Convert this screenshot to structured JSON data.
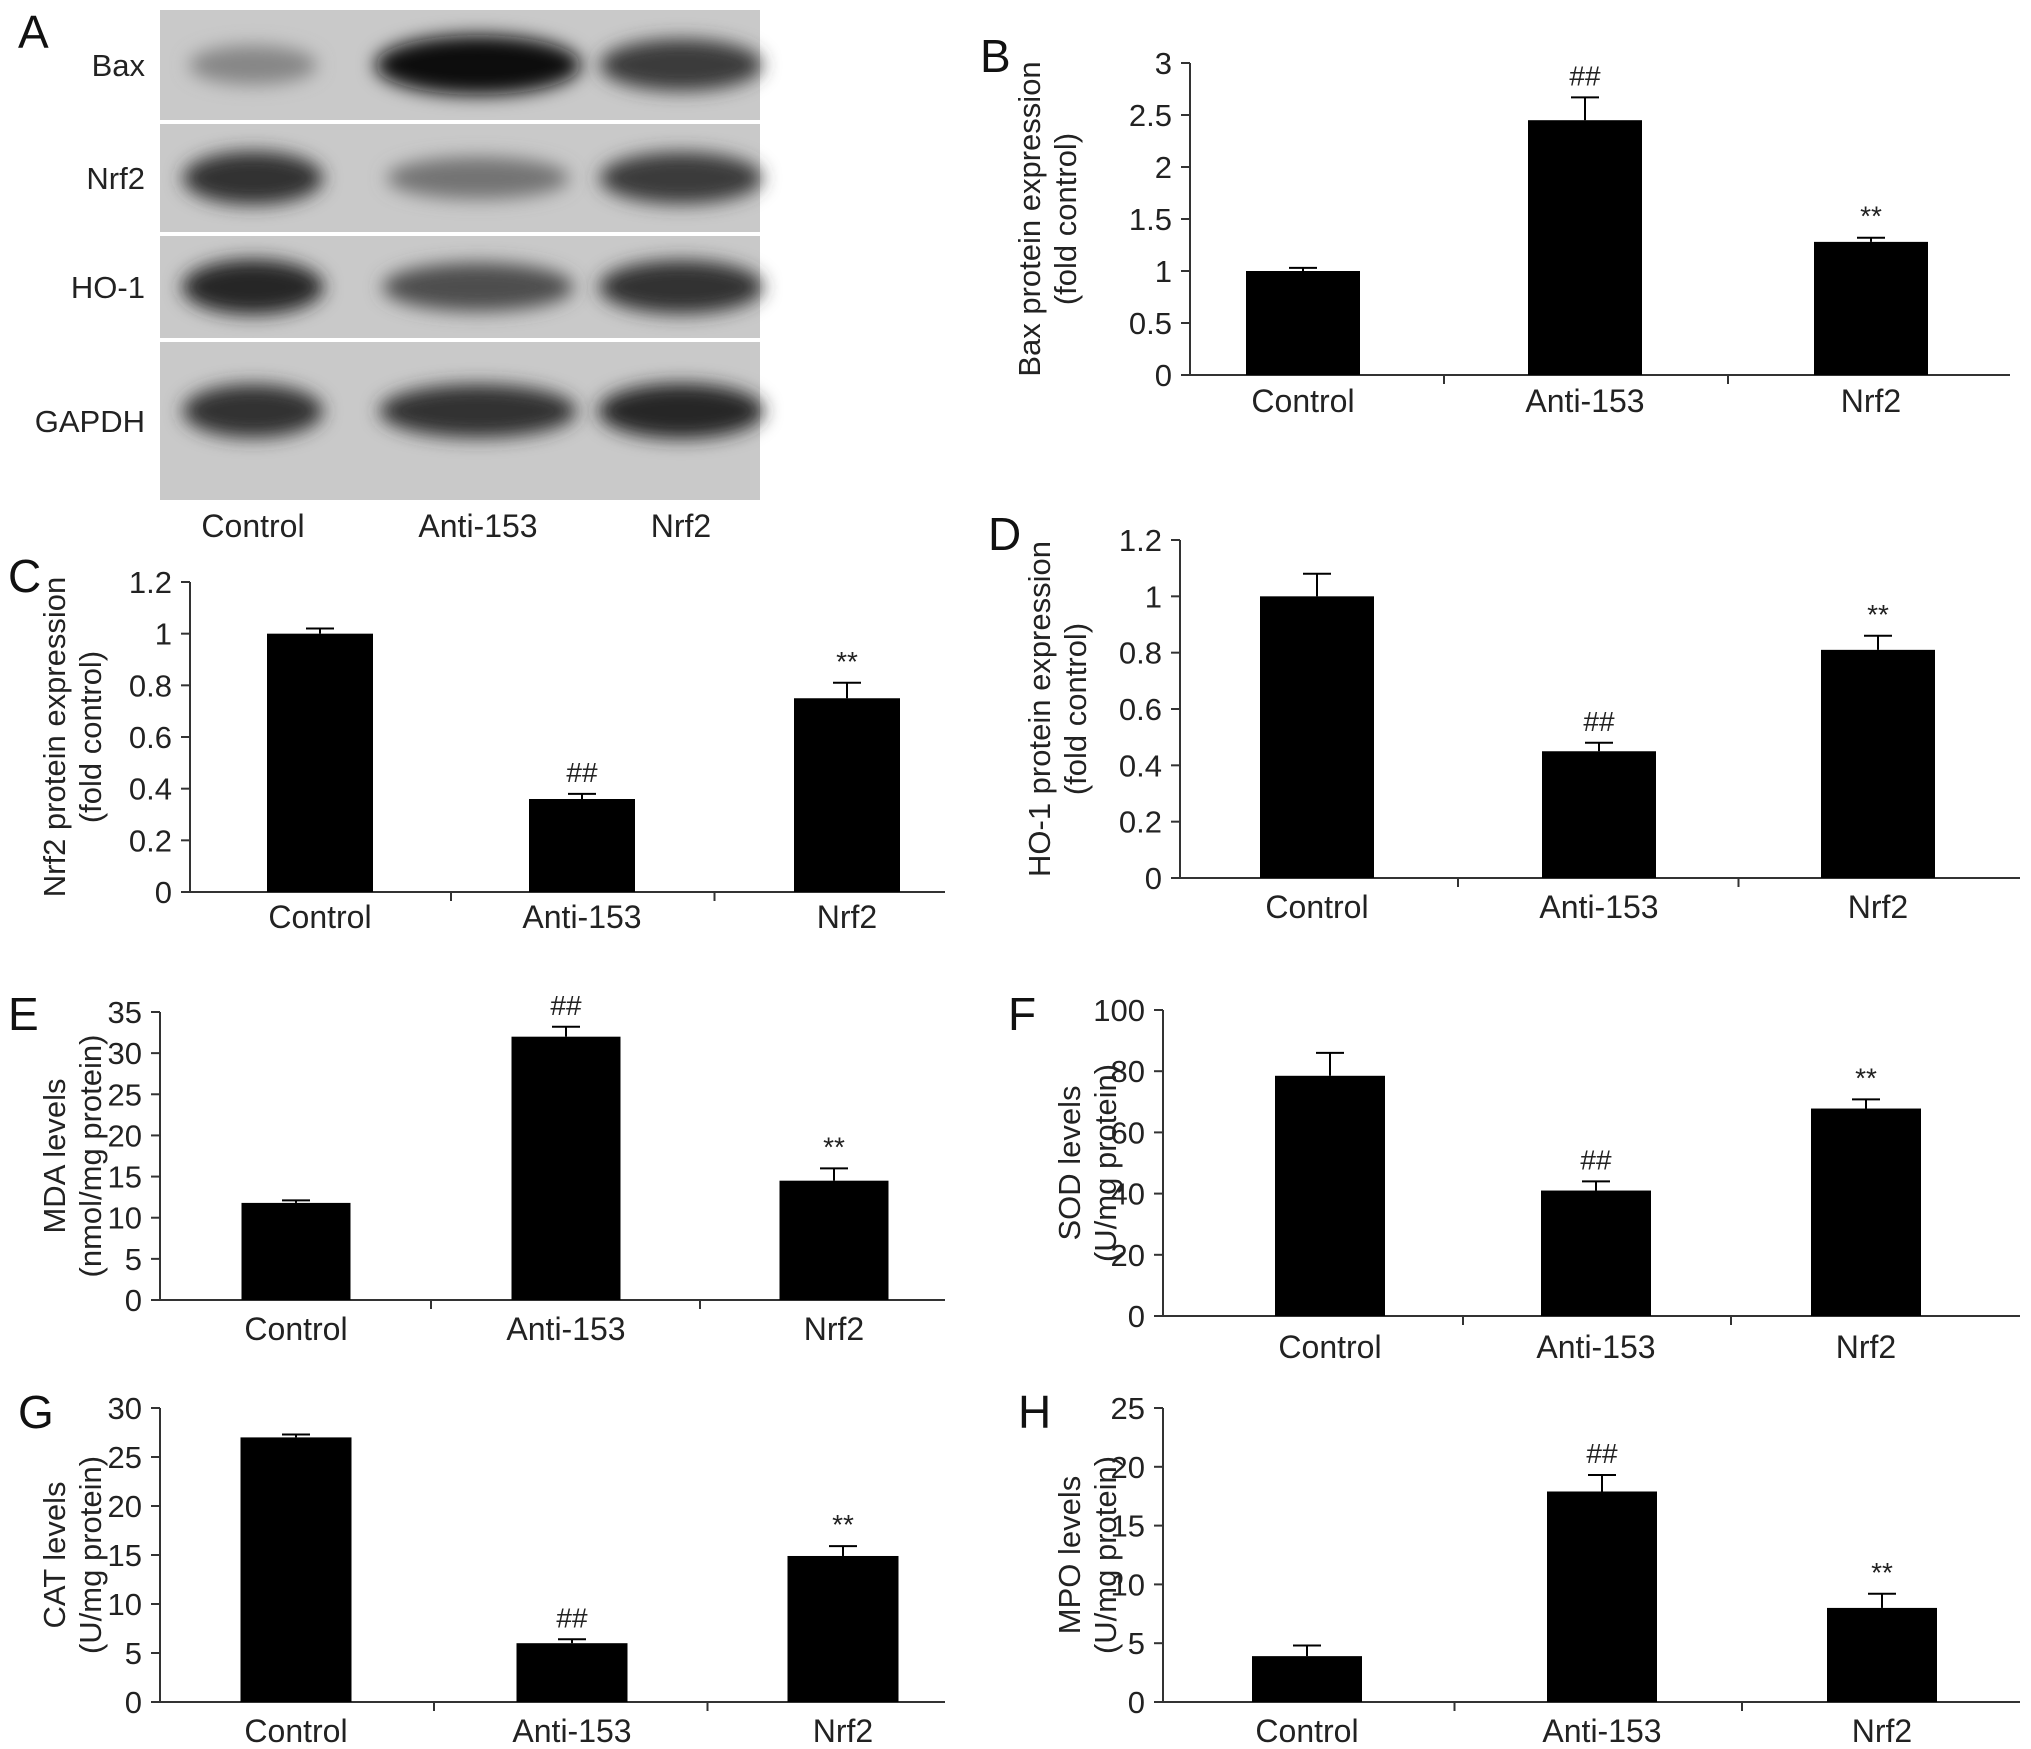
{
  "blot": {
    "panel": "A",
    "rows": [
      "Bax",
      "Nrf2",
      "HO-1",
      "GAPDH"
    ],
    "lanes": [
      "Control",
      "Anti-153",
      "Nrf2"
    ],
    "band_intensity": {
      "Bax": [
        0.35,
        1.0,
        0.75
      ],
      "Nrf2": [
        0.8,
        0.45,
        0.75
      ],
      "HO-1": [
        0.85,
        0.65,
        0.8
      ],
      "GAPDH": [
        0.8,
        0.8,
        0.85
      ]
    }
  },
  "chart_data": [
    {
      "panel": "B",
      "type": "bar",
      "categories": [
        "Control",
        "Anti-153",
        "Nrf2"
      ],
      "values": [
        1.0,
        2.45,
        1.28
      ],
      "errors": [
        0.03,
        0.22,
        0.04
      ],
      "annotations": [
        "",
        "##",
        "**"
      ],
      "ylabel": [
        "Bax protein expression",
        "(fold control)"
      ],
      "ylim": [
        0,
        3
      ],
      "yticks": [
        0,
        0.5,
        1,
        1.5,
        2,
        2.5,
        3
      ],
      "grid": false
    },
    {
      "panel": "C",
      "type": "bar",
      "categories": [
        "Control",
        "Anti-153",
        "Nrf2"
      ],
      "values": [
        1.0,
        0.36,
        0.75
      ],
      "errors": [
        0.02,
        0.02,
        0.06
      ],
      "annotations": [
        "",
        "##",
        "**"
      ],
      "ylabel": [
        "Nrf2 protein expression",
        "(fold control)"
      ],
      "ylim": [
        0,
        1.2
      ],
      "yticks": [
        0,
        0.2,
        0.4,
        0.6,
        0.8,
        1,
        1.2
      ],
      "grid": false
    },
    {
      "panel": "D",
      "type": "bar",
      "categories": [
        "Control",
        "Anti-153",
        "Nrf2"
      ],
      "values": [
        1.0,
        0.45,
        0.81
      ],
      "errors": [
        0.08,
        0.03,
        0.05
      ],
      "annotations": [
        "",
        "##",
        "**"
      ],
      "ylabel": [
        "HO-1 protein expression",
        "(fold control)"
      ],
      "ylim": [
        0,
        1.2
      ],
      "yticks": [
        0,
        0.2,
        0.4,
        0.6,
        0.8,
        1,
        1.2
      ],
      "grid": false
    },
    {
      "panel": "E",
      "type": "bar",
      "categories": [
        "Control",
        "Anti-153",
        "Nrf2"
      ],
      "values": [
        11.8,
        32.0,
        14.5
      ],
      "errors": [
        0.3,
        1.2,
        1.5
      ],
      "annotations": [
        "",
        "##",
        "**"
      ],
      "ylabel": [
        "MDA levels",
        "(nmol/mg protein)"
      ],
      "ylim": [
        0,
        35
      ],
      "yticks": [
        0,
        5,
        10,
        15,
        20,
        25,
        30,
        35
      ],
      "grid": false
    },
    {
      "panel": "F",
      "type": "bar",
      "categories": [
        "Control",
        "Anti-153",
        "Nrf2"
      ],
      "values": [
        78.5,
        41.0,
        67.8
      ],
      "errors": [
        7.5,
        3.0,
        3.0
      ],
      "annotations": [
        "",
        "##",
        "**"
      ],
      "ylabel": [
        "SOD levels",
        "(U/mg protein)"
      ],
      "ylim": [
        0,
        100
      ],
      "yticks": [
        0,
        20,
        40,
        60,
        80,
        100
      ],
      "grid": false
    },
    {
      "panel": "G",
      "type": "bar",
      "categories": [
        "Control",
        "Anti-153",
        "Nrf2"
      ],
      "values": [
        27.0,
        6.0,
        14.9
      ],
      "errors": [
        0.3,
        0.4,
        1.0
      ],
      "annotations": [
        "",
        "##",
        "**"
      ],
      "ylabel": [
        "CAT levels",
        "(U/mg protein)"
      ],
      "ylim": [
        0,
        30
      ],
      "yticks": [
        0,
        5,
        10,
        15,
        20,
        25,
        30
      ],
      "grid": false
    },
    {
      "panel": "H",
      "type": "bar",
      "categories": [
        "Control",
        "Anti-153",
        "Nrf2"
      ],
      "values": [
        3.9,
        17.9,
        8.0
      ],
      "errors": [
        0.9,
        1.4,
        1.2
      ],
      "annotations": [
        "",
        "##",
        "**"
      ],
      "ylabel": [
        "MPO levels",
        "(U/mg protein)"
      ],
      "ylim": [
        0,
        25
      ],
      "yticks": [
        0,
        5,
        10,
        15,
        20,
        25
      ],
      "grid": false
    }
  ]
}
